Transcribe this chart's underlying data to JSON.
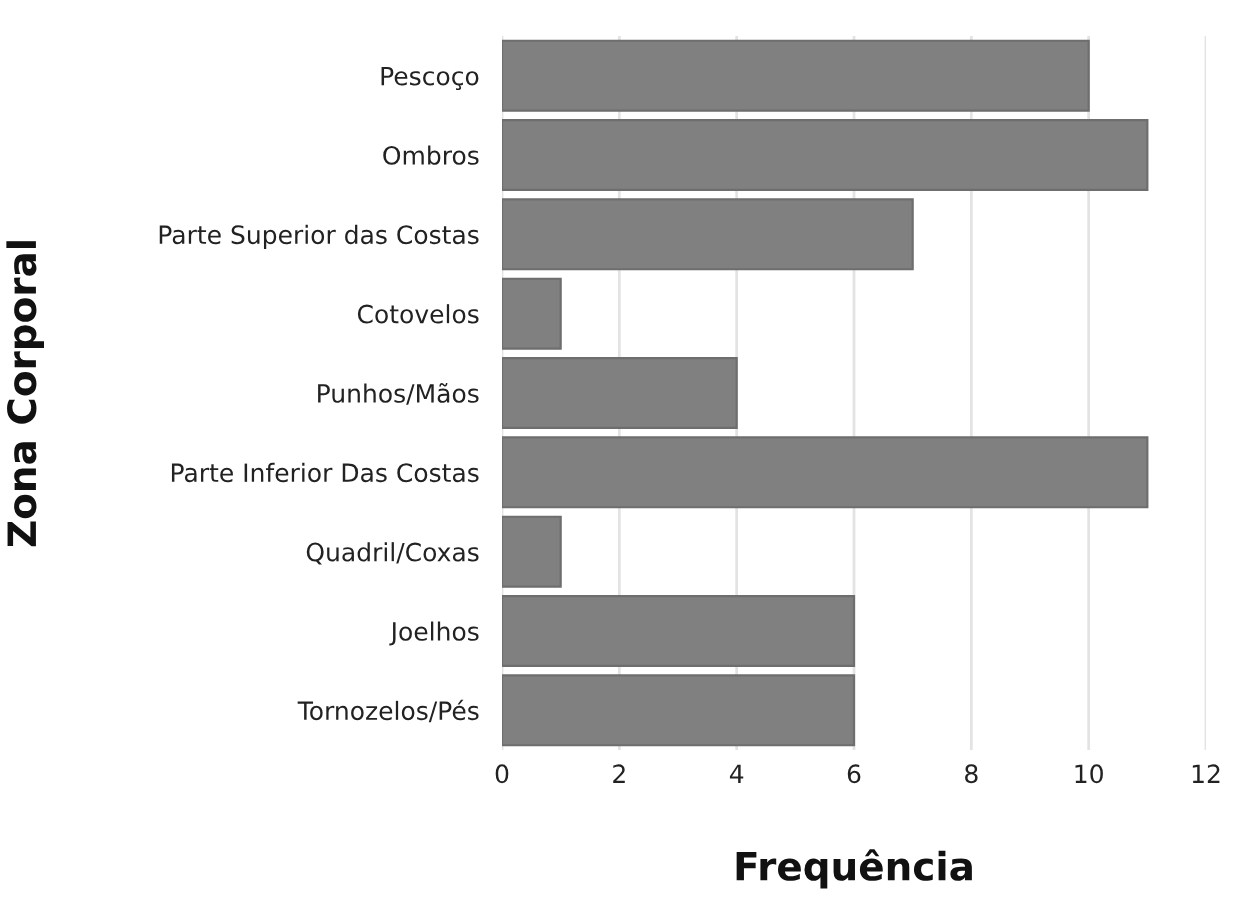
{
  "chart_data": {
    "type": "bar",
    "orientation": "horizontal",
    "xlabel": "Frequência",
    "ylabel": "Zona Corporal",
    "categories": [
      "Pescoço",
      "Ombros",
      "Parte Superior das Costas",
      "Cotovelos",
      "Punhos/Mãos",
      "Parte Inferior Das Costas",
      "Quadril/Coxas",
      "Joelhos",
      "Tornozelos/Pés"
    ],
    "values": [
      10,
      11,
      7,
      1,
      4,
      11,
      1,
      6,
      6
    ],
    "color": "#808080",
    "xlim": [
      0,
      12
    ],
    "xticks": [
      0,
      2,
      4,
      6,
      8,
      10,
      12
    ],
    "grid": "x",
    "legend": false
  }
}
